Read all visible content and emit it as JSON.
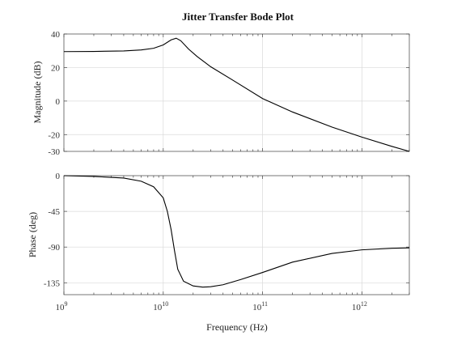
{
  "chart_data": [
    {
      "type": "line",
      "title": "Jitter Transfer Bode Plot",
      "xlabel": "",
      "ylabel": "Magnitude (dB)",
      "xscale": "log",
      "xlim": [
        1000000000.0,
        3000000000000.0
      ],
      "ylim": [
        -30,
        40
      ],
      "yticks": [
        40,
        20,
        0,
        -20,
        -30
      ],
      "grid": true,
      "series": [
        {
          "x": [
            1000000000.0,
            2000000000.0,
            4000000000.0,
            6000000000.0,
            8000000000.0,
            10000000000.0,
            12000000000.0,
            13500000000.0,
            15000000000.0,
            18000000000.0,
            22000000000.0,
            30000000000.0,
            50000000000.0,
            100000000000.0,
            200000000000.0,
            500000000000.0,
            1000000000000.0,
            2000000000000.0,
            3000000000000.0
          ],
          "values": [
            29.5,
            29.6,
            29.9,
            30.5,
            31.5,
            33.5,
            36.5,
            37.5,
            36,
            31,
            26.5,
            20.5,
            12.5,
            1.5,
            -6.5,
            -15.5,
            -21.5,
            -27,
            -30
          ]
        }
      ]
    },
    {
      "type": "line",
      "title": "",
      "xlabel": "Frequency (Hz)",
      "ylabel": "Phase (deg)",
      "xscale": "log",
      "xlim": [
        1000000000.0,
        3000000000000.0
      ],
      "ylim": [
        -150,
        0
      ],
      "yticks": [
        0,
        -45,
        -90,
        -135
      ],
      "xticks": [
        {
          "base": "10",
          "exp": "9",
          "value": 1000000000.0
        },
        {
          "base": "10",
          "exp": "10",
          "value": 10000000000.0
        },
        {
          "base": "10",
          "exp": "11",
          "value": 100000000000.0
        },
        {
          "base": "10",
          "exp": "12",
          "value": 1000000000000.0
        }
      ],
      "grid": true,
      "series": [
        {
          "x": [
            1000000000.0,
            2000000000.0,
            4000000000.0,
            6000000000.0,
            8000000000.0,
            10000000000.0,
            11000000000.0,
            12000000000.0,
            13000000000.0,
            14000000000.0,
            16000000000.0,
            20000000000.0,
            25000000000.0,
            30000000000.0,
            40000000000.0,
            60000000000.0,
            100000000000.0,
            200000000000.0,
            500000000000.0,
            1000000000000.0,
            2000000000000.0,
            3000000000000.0
          ],
          "values": [
            0,
            -1,
            -3,
            -7,
            -14,
            -28,
            -45,
            -68,
            -95,
            -118,
            -133,
            -139,
            -140.5,
            -140,
            -137.5,
            -131,
            -122,
            -109,
            -98,
            -93.5,
            -91.5,
            -91
          ]
        }
      ]
    }
  ]
}
